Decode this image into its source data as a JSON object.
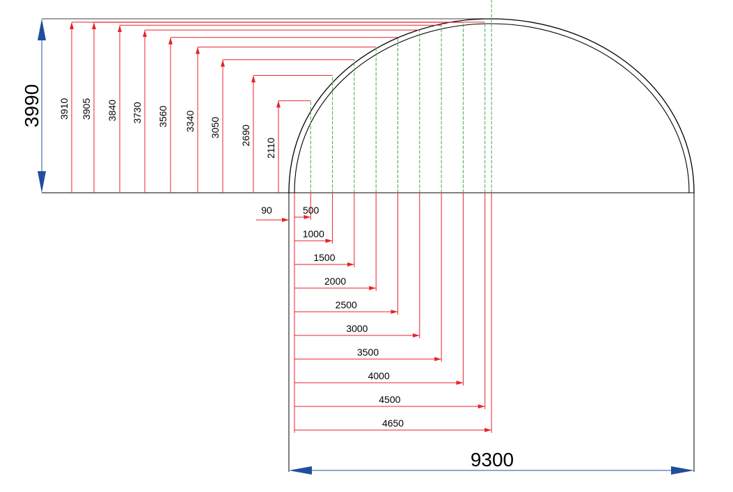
{
  "colors": {
    "dimension": "#e8222b",
    "overall_dimension": "#1f4e9c",
    "outline": "#000000",
    "section": "#3fae49",
    "background": "#ffffff"
  },
  "overall": {
    "height_label": "3990",
    "width_label": "9300"
  },
  "gap_label": "90",
  "heights": [
    "3910",
    "3905",
    "3840",
    "3730",
    "3560",
    "3340",
    "3050",
    "2690",
    "2110"
  ],
  "offsets": [
    "500",
    "1000",
    "1500",
    "2000",
    "2500",
    "3000",
    "3500",
    "4000",
    "4500",
    "4650"
  ]
}
